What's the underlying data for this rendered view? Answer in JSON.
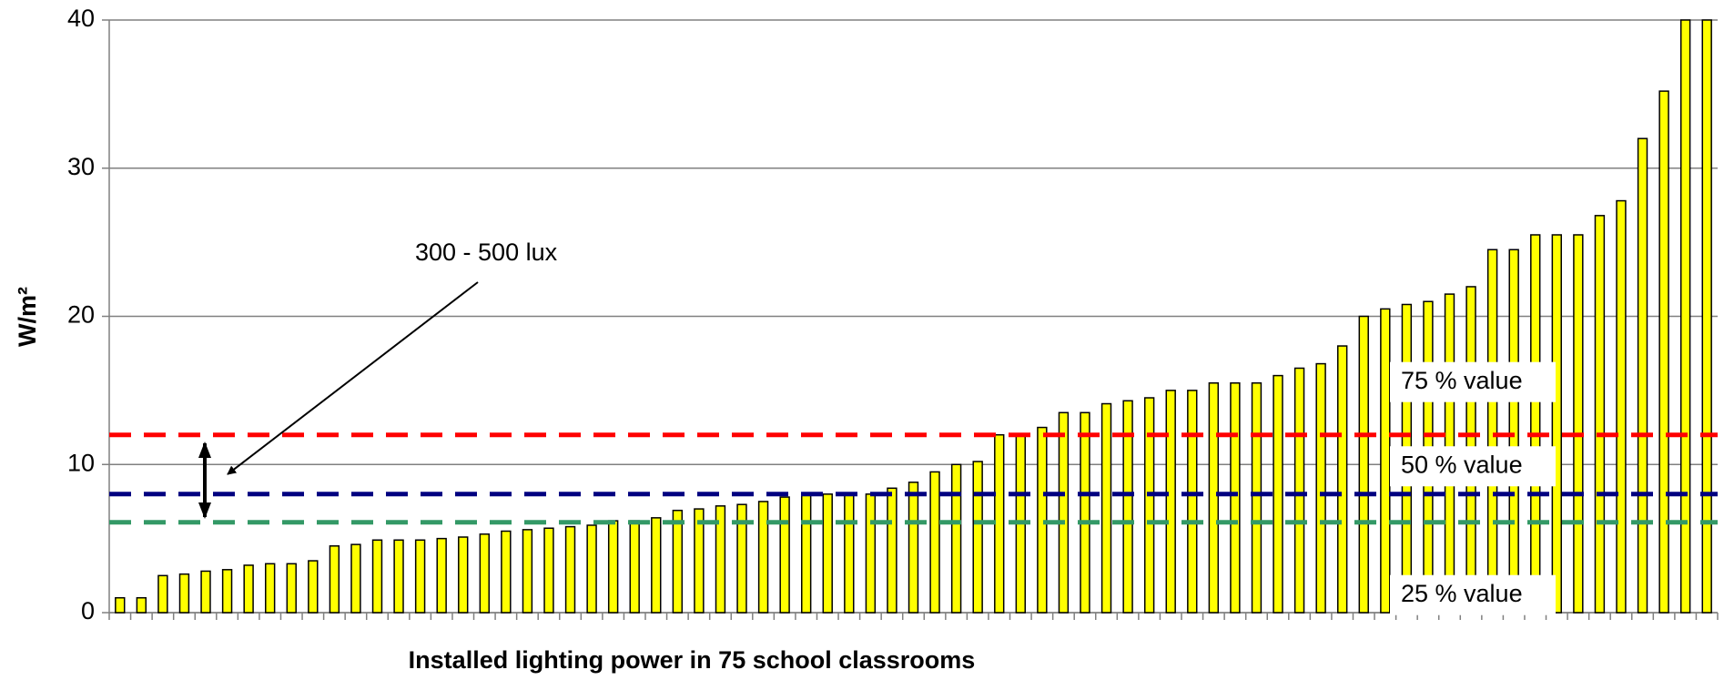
{
  "chart_data": {
    "type": "bar",
    "x_label": "Installed lighting power in 75 school classrooms",
    "y_label": "W/m²",
    "annotation": "300 - 500 lux",
    "color": "#ffff00",
    "values": [
      1.0,
      1.0,
      2.5,
      2.6,
      2.8,
      2.9,
      3.2,
      3.3,
      3.3,
      3.5,
      4.5,
      4.6,
      4.9,
      4.9,
      4.9,
      5.0,
      5.1,
      5.3,
      5.5,
      5.6,
      5.7,
      5.8,
      5.9,
      6.2,
      6.2,
      6.4,
      6.9,
      7.0,
      7.2,
      7.3,
      7.5,
      7.8,
      8.0,
      8.0,
      8.0,
      8.0,
      8.4,
      8.8,
      9.5,
      10.0,
      10.2,
      12.0,
      12.0,
      12.5,
      13.5,
      13.5,
      14.1,
      14.3,
      14.5,
      15.0,
      15.0,
      15.5,
      15.5,
      15.5,
      16.0,
      16.5,
      16.8,
      18.0,
      20.0,
      20.5,
      20.8,
      21.0,
      21.5,
      22.0,
      24.5,
      24.5,
      25.5,
      25.5,
      25.5,
      26.8,
      27.8,
      32.0,
      35.2,
      40.0,
      40.0
    ],
    "ylim": [
      0,
      40
    ],
    "yticks": [
      0,
      10,
      20,
      30,
      40
    ],
    "grid": true,
    "reference_lines": [
      {
        "value": 12,
        "color": "#ff0000",
        "label": "75 % value"
      },
      {
        "value": 8,
        "color": "#000080",
        "label": "50 % value"
      },
      {
        "value": 6.1,
        "color": "#339966",
        "label": "25 % value"
      }
    ]
  }
}
